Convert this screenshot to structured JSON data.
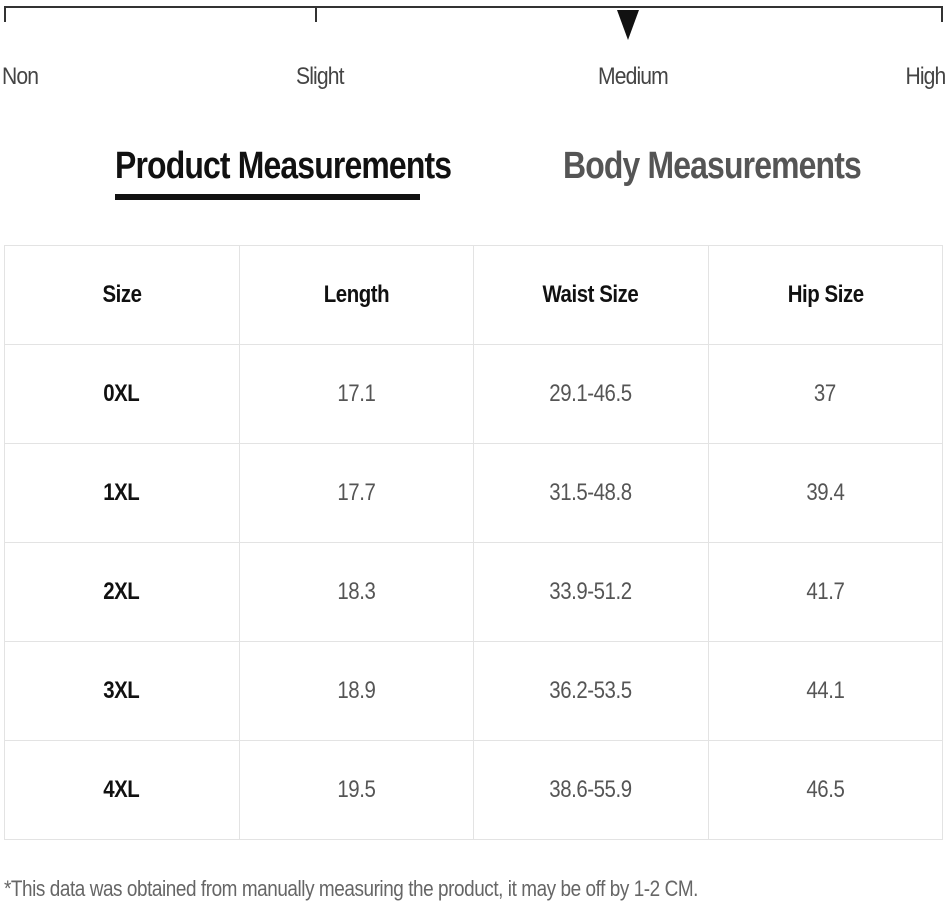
{
  "stretch_scale": {
    "levels": [
      "Non",
      "Slight",
      "Medium",
      "High"
    ],
    "selected": "Medium"
  },
  "tabs": [
    {
      "label": "Product Measurements",
      "active": true
    },
    {
      "label": "Body Measurements",
      "active": false
    }
  ],
  "table": {
    "headers": [
      "Size",
      "Length",
      "Waist Size",
      "Hip Size"
    ],
    "rows": [
      [
        "0XL",
        "17.1",
        "29.1-46.5",
        "37"
      ],
      [
        "1XL",
        "17.7",
        "31.5-48.8",
        "39.4"
      ],
      [
        "2XL",
        "18.3",
        "33.9-51.2",
        "41.7"
      ],
      [
        "3XL",
        "18.9",
        "36.2-53.5",
        "44.1"
      ],
      [
        "4XL",
        "19.5",
        "38.6-55.9",
        "46.5"
      ]
    ]
  },
  "footnote": "*This data was obtained from manually measuring the product, it may be off by 1-2 CM.",
  "colors": {
    "active_tab": "#111111",
    "inactive_tab": "#555555",
    "grid_line": "#e3e3e3"
  }
}
